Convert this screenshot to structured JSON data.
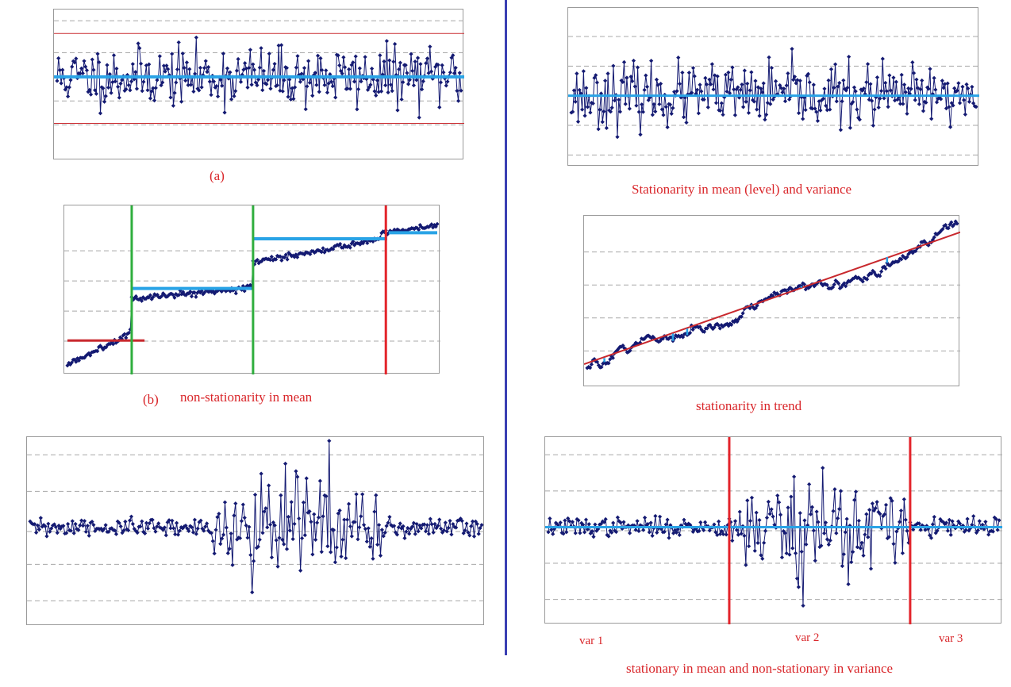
{
  "colors": {
    "series": "#141a72",
    "frame": "#9a9a9a",
    "grid": "#a8a8a8",
    "fit_line": "#29a3e6",
    "caption": "#d9262a",
    "break_green": "#2fae3e",
    "break_red": "#e3242b",
    "limit_line": "#c8282d",
    "divider": "#3a3fb3"
  },
  "captions": {
    "a_label": "(a)",
    "b_label": "(b)",
    "b_title": "non-stationarity in mean",
    "stationary_title": "Stationarity in mean (level) and variance",
    "trend_title": "stationarity in trend",
    "variance_title": "stationary in mean and non-stationary in variance",
    "var1": "var 1",
    "var2": "var 2",
    "var3": "var 3"
  },
  "chart_data": [
    {
      "id": "panel-a",
      "type": "line",
      "title": "(a)",
      "n_points": 300,
      "pattern": "stationary",
      "mean": 0,
      "noise_sd": 0.9,
      "ylim": [
        -5,
        4
      ],
      "grid_y": [
        -3,
        -1.5,
        1.5,
        3.5
      ],
      "mean_line": 0,
      "control_limits": [
        2.7,
        -2.9
      ],
      "seed": 11
    },
    {
      "id": "panel-stationary",
      "type": "line",
      "title": "Stationarity in mean (level) and variance",
      "n_points": 300,
      "pattern": "stationary",
      "mean": 0,
      "noise_sd": 0.9,
      "ylim": [
        -4,
        5
      ],
      "grid_y": [
        -3.5,
        -1.75,
        1.75,
        3.5
      ],
      "mean_line": 0,
      "seed": 23
    },
    {
      "id": "panel-b",
      "type": "line",
      "title": "non-stationarity in mean",
      "n_points": 260,
      "pattern": "level-shifts",
      "segments": [
        {
          "from": 0,
          "to": 45,
          "start": 0.2,
          "end": 1.3
        },
        {
          "from": 45,
          "to": 130,
          "start": 2.4,
          "end": 2.8
        },
        {
          "from": 130,
          "to": 220,
          "start": 3.6,
          "end": 4.4
        },
        {
          "from": 220,
          "to": 260,
          "start": 4.6,
          "end": 4.85
        }
      ],
      "segment_means": [
        {
          "from": 0,
          "to": 55,
          "value": 1.02
        },
        {
          "from": 45,
          "to": 130,
          "value": 2.75
        },
        {
          "from": 130,
          "to": 225,
          "value": 4.4
        },
        {
          "from": 225,
          "to": 260,
          "value": 4.6
        }
      ],
      "breaks": [
        {
          "x": 45,
          "color": "green"
        },
        {
          "x": 130,
          "color": "green"
        },
        {
          "x": 223,
          "color": "red"
        }
      ],
      "ylim": [
        0,
        5.4
      ],
      "grid_y": [
        1,
        2,
        3,
        4
      ],
      "seed": 5
    },
    {
      "id": "panel-trend",
      "type": "line",
      "title": "stationarity in trend",
      "n_points": 260,
      "pattern": "trend",
      "trend_start": 0.4,
      "trend_end": 4.5,
      "trend_line": [
        0.6,
        4.6
      ],
      "residual_marks": [
        12,
        60,
        70,
        115,
        150,
        210
      ],
      "ylim": [
        0,
        5
      ],
      "grid_y": [
        1,
        2,
        3,
        4
      ],
      "seed": 9
    },
    {
      "id": "panel-variance",
      "type": "line",
      "title": "",
      "n_points": 300,
      "pattern": "variance-burst",
      "base_sd": 0.9,
      "burst_from": 120,
      "burst_to": 240,
      "burst_sd": 6,
      "ylim": [
        -13,
        12
      ],
      "grid_y": [
        -10,
        -5,
        -0.5,
        5,
        10
      ],
      "seed": 31
    },
    {
      "id": "panel-variance-split",
      "type": "line",
      "title": "stationary in mean and non-stationary in variance",
      "n_points": 300,
      "pattern": "variance-burst",
      "base_sd": 0.9,
      "burst_from": 120,
      "burst_to": 240,
      "burst_sd": 6,
      "mean_line": 0,
      "breaks": [
        {
          "x": 120,
          "color": "red"
        },
        {
          "x": 240,
          "color": "red"
        }
      ],
      "regime_labels": [
        "var 1",
        "var 2",
        "var 3"
      ],
      "ylim": [
        -13,
        12
      ],
      "grid_y": [
        -10,
        -5,
        -0.5,
        5,
        10
      ],
      "seed": 37
    }
  ]
}
